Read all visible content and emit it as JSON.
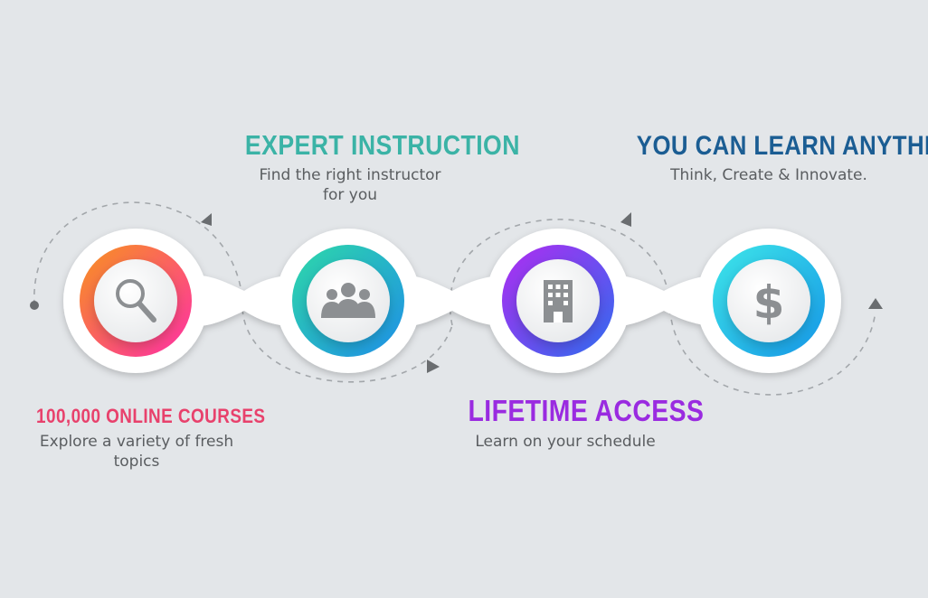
{
  "steps": [
    {
      "title": "100,000 ONLINE COURSES",
      "desc_line1": "Explore a variety of fresh",
      "desc_line2": "topics",
      "icon": "search-icon"
    },
    {
      "title": "EXPERT INSTRUCTION",
      "desc_line1": "Find the right instructor",
      "desc_line2": "for you",
      "icon": "people-icon"
    },
    {
      "title": "LIFETIME ACCESS",
      "desc_line1": "Learn on your schedule",
      "desc_line2": "",
      "icon": "building-icon"
    },
    {
      "title": "YOU CAN LEARN ANYTHING",
      "desc_line1": "Think, Create & Innovate.",
      "desc_line2": "",
      "icon": "dollar-icon"
    }
  ],
  "colors": {
    "background": "#e3e6e9",
    "ring1": [
      "#f7931e",
      "#ff2fa6"
    ],
    "ring2": [
      "#2ed8a8",
      "#1e90e8"
    ],
    "ring3": [
      "#b02cf0",
      "#2f6cf0"
    ],
    "ring4": [
      "#3ee6e8",
      "#1597e8"
    ],
    "icon_gray": "#8c8f92",
    "dash_gray": "#a3a7ab"
  }
}
